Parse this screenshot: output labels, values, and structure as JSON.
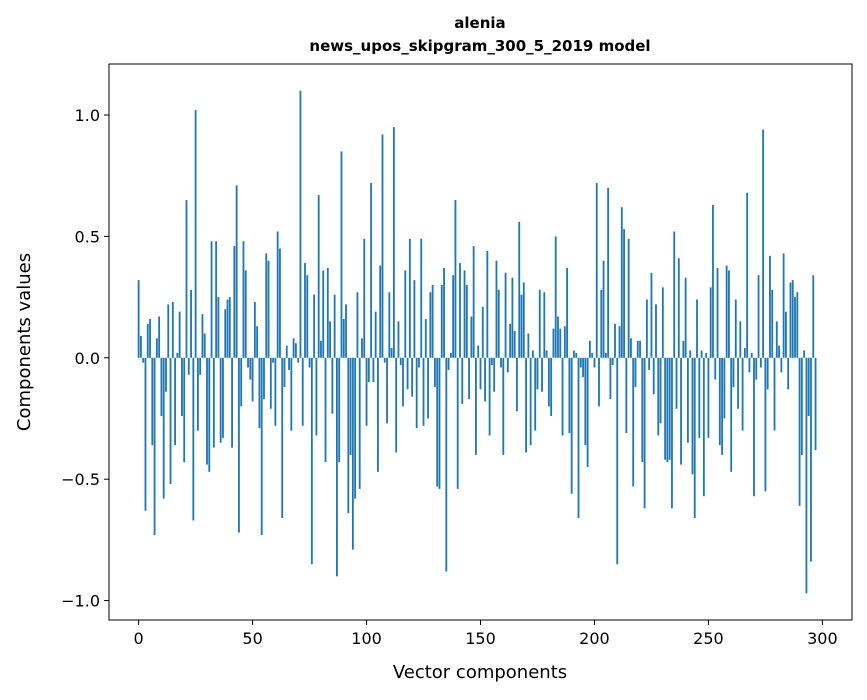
{
  "chart_data": {
    "type": "bar",
    "title": "alenia",
    "subtitle": "news_upos_skipgram_300_5_2019 model",
    "xlabel": "Vector components",
    "ylabel": "Components values",
    "xlim": [
      -13,
      313
    ],
    "ylim": [
      -1.08,
      1.21
    ],
    "xticks": [
      0,
      50,
      100,
      150,
      200,
      250,
      300
    ],
    "xtick_labels": [
      "0",
      "50",
      "100",
      "150",
      "200",
      "250",
      "300"
    ],
    "yticks": [
      -1.0,
      -0.5,
      0.0,
      0.5,
      1.0
    ],
    "ytick_labels": [
      "−1.0",
      "−0.5",
      "0.0",
      "0.5",
      "1.0"
    ],
    "grid": false,
    "color": "#1f77b4",
    "values": [
      0.32,
      0.09,
      -0.02,
      -0.63,
      0.14,
      0.16,
      -0.36,
      -0.73,
      0.08,
      0.17,
      -0.24,
      -0.58,
      -0.14,
      0.22,
      -0.52,
      0.23,
      -0.36,
      0.02,
      0.19,
      -0.24,
      -0.43,
      0.65,
      -0.07,
      0.28,
      -0.67,
      1.02,
      -0.3,
      -0.07,
      0.18,
      0.1,
      -0.44,
      -0.47,
      0.48,
      -0.37,
      0.48,
      0.25,
      -0.35,
      -0.33,
      0.2,
      0.24,
      0.25,
      -0.37,
      0.46,
      0.71,
      -0.72,
      -0.2,
      0.48,
      0.36,
      -0.04,
      -0.09,
      -0.18,
      0.23,
      0.13,
      -0.29,
      -0.73,
      -0.17,
      0.43,
      0.4,
      -0.21,
      -0.02,
      -0.28,
      0.52,
      0.45,
      -0.66,
      -0.12,
      0.05,
      -0.05,
      -0.3,
      0.08,
      0.06,
      -0.02,
      1.1,
      -0.28,
      0.39,
      0.34,
      -0.04,
      -0.85,
      0.26,
      -0.32,
      0.67,
      0.07,
      0.36,
      -0.43,
      0.37,
      0.15,
      -0.23,
      0.26,
      -0.9,
      -0.43,
      0.85,
      0.16,
      0.22,
      -0.64,
      -0.4,
      -0.79,
      -0.58,
      0.27,
      -0.54,
      0.08,
      0.49,
      -0.28,
      -0.1,
      0.72,
      -0.1,
      0.19,
      -0.47,
      0.38,
      0.92,
      -0.02,
      -0.27,
      0.27,
      0.04,
      0.95,
      -0.39,
      0.15,
      -0.03,
      -0.2,
      0.36,
      -0.13,
      0.49,
      -0.16,
      0.32,
      -0.29,
      -0.04,
      0.49,
      -0.28,
      0.16,
      -0.25,
      0.27,
      0.3,
      -0.12,
      -0.53,
      -0.54,
      0.3,
      0.37,
      -0.88,
      -0.05,
      0.02,
      0.34,
      0.65,
      -0.54,
      0.39,
      -0.19,
      0.36,
      0.3,
      -0.17,
      0.17,
      0.46,
      -0.4,
      0.05,
      -0.13,
      0.21,
      -0.18,
      0.44,
      -0.32,
      -0.03,
      -0.14,
      0.4,
      0.28,
      -0.04,
      -0.4,
      0.35,
      -0.06,
      0.14,
      0.33,
      0.11,
      -0.22,
      0.56,
      0.26,
      0.31,
      -0.39,
      0.1,
      -0.36,
      0.03,
      -0.3,
      -0.13,
      0.28,
      -0.14,
      0.27,
      0.03,
      -0.2,
      -0.24,
      0.12,
      0.5,
      0.17,
      0.12,
      -0.32,
      0.13,
      0.37,
      -0.31,
      -0.56,
      0.03,
      0.02,
      -0.66,
      -0.04,
      -0.08,
      -0.36,
      -0.45,
      0.07,
      0.02,
      -0.04,
      0.72,
      -0.2,
      0.28,
      0.4,
      0.02,
      0.7,
      -0.17,
      -0.03,
      0.14,
      -0.85,
      0.13,
      0.62,
      0.53,
      -0.31,
      0.49,
      0.08,
      -0.53,
      -0.12,
      0.07,
      0.07,
      -0.43,
      -0.62,
      0.24,
      -0.05,
      0.35,
      -0.15,
      0.22,
      -0.32,
      -0.27,
      0.29,
      -0.42,
      -0.43,
      -0.42,
      -0.62,
      0.52,
      -0.21,
      0.41,
      -0.44,
      0.07,
      0.33,
      -0.35,
      0.03,
      -0.48,
      -0.66,
      0.24,
      -0.33,
      0.03,
      -0.57,
      0.02,
      -0.33,
      0.29,
      0.63,
      -0.09,
      0.37,
      -0.36,
      -0.4,
      -0.25,
      0.38,
      0.36,
      -0.47,
      -0.12,
      0.24,
      -0.21,
      0.15,
      -0.3,
      0.04,
      0.68,
      -0.06,
      0.02,
      -0.57,
      -0.09,
      0.34,
      -0.04,
      0.94,
      -0.55,
      -0.13,
      0.42,
      0.28,
      -0.3,
      0.15,
      0.05,
      -0.06,
      0.43,
      0.19,
      -0.13,
      0.31,
      0.32,
      0.25,
      0.27,
      -0.61,
      -0.4,
      0.03,
      -0.97,
      -0.24,
      -0.84,
      0.34,
      -0.38,
      0.0,
      0.0,
      0.0
    ]
  }
}
